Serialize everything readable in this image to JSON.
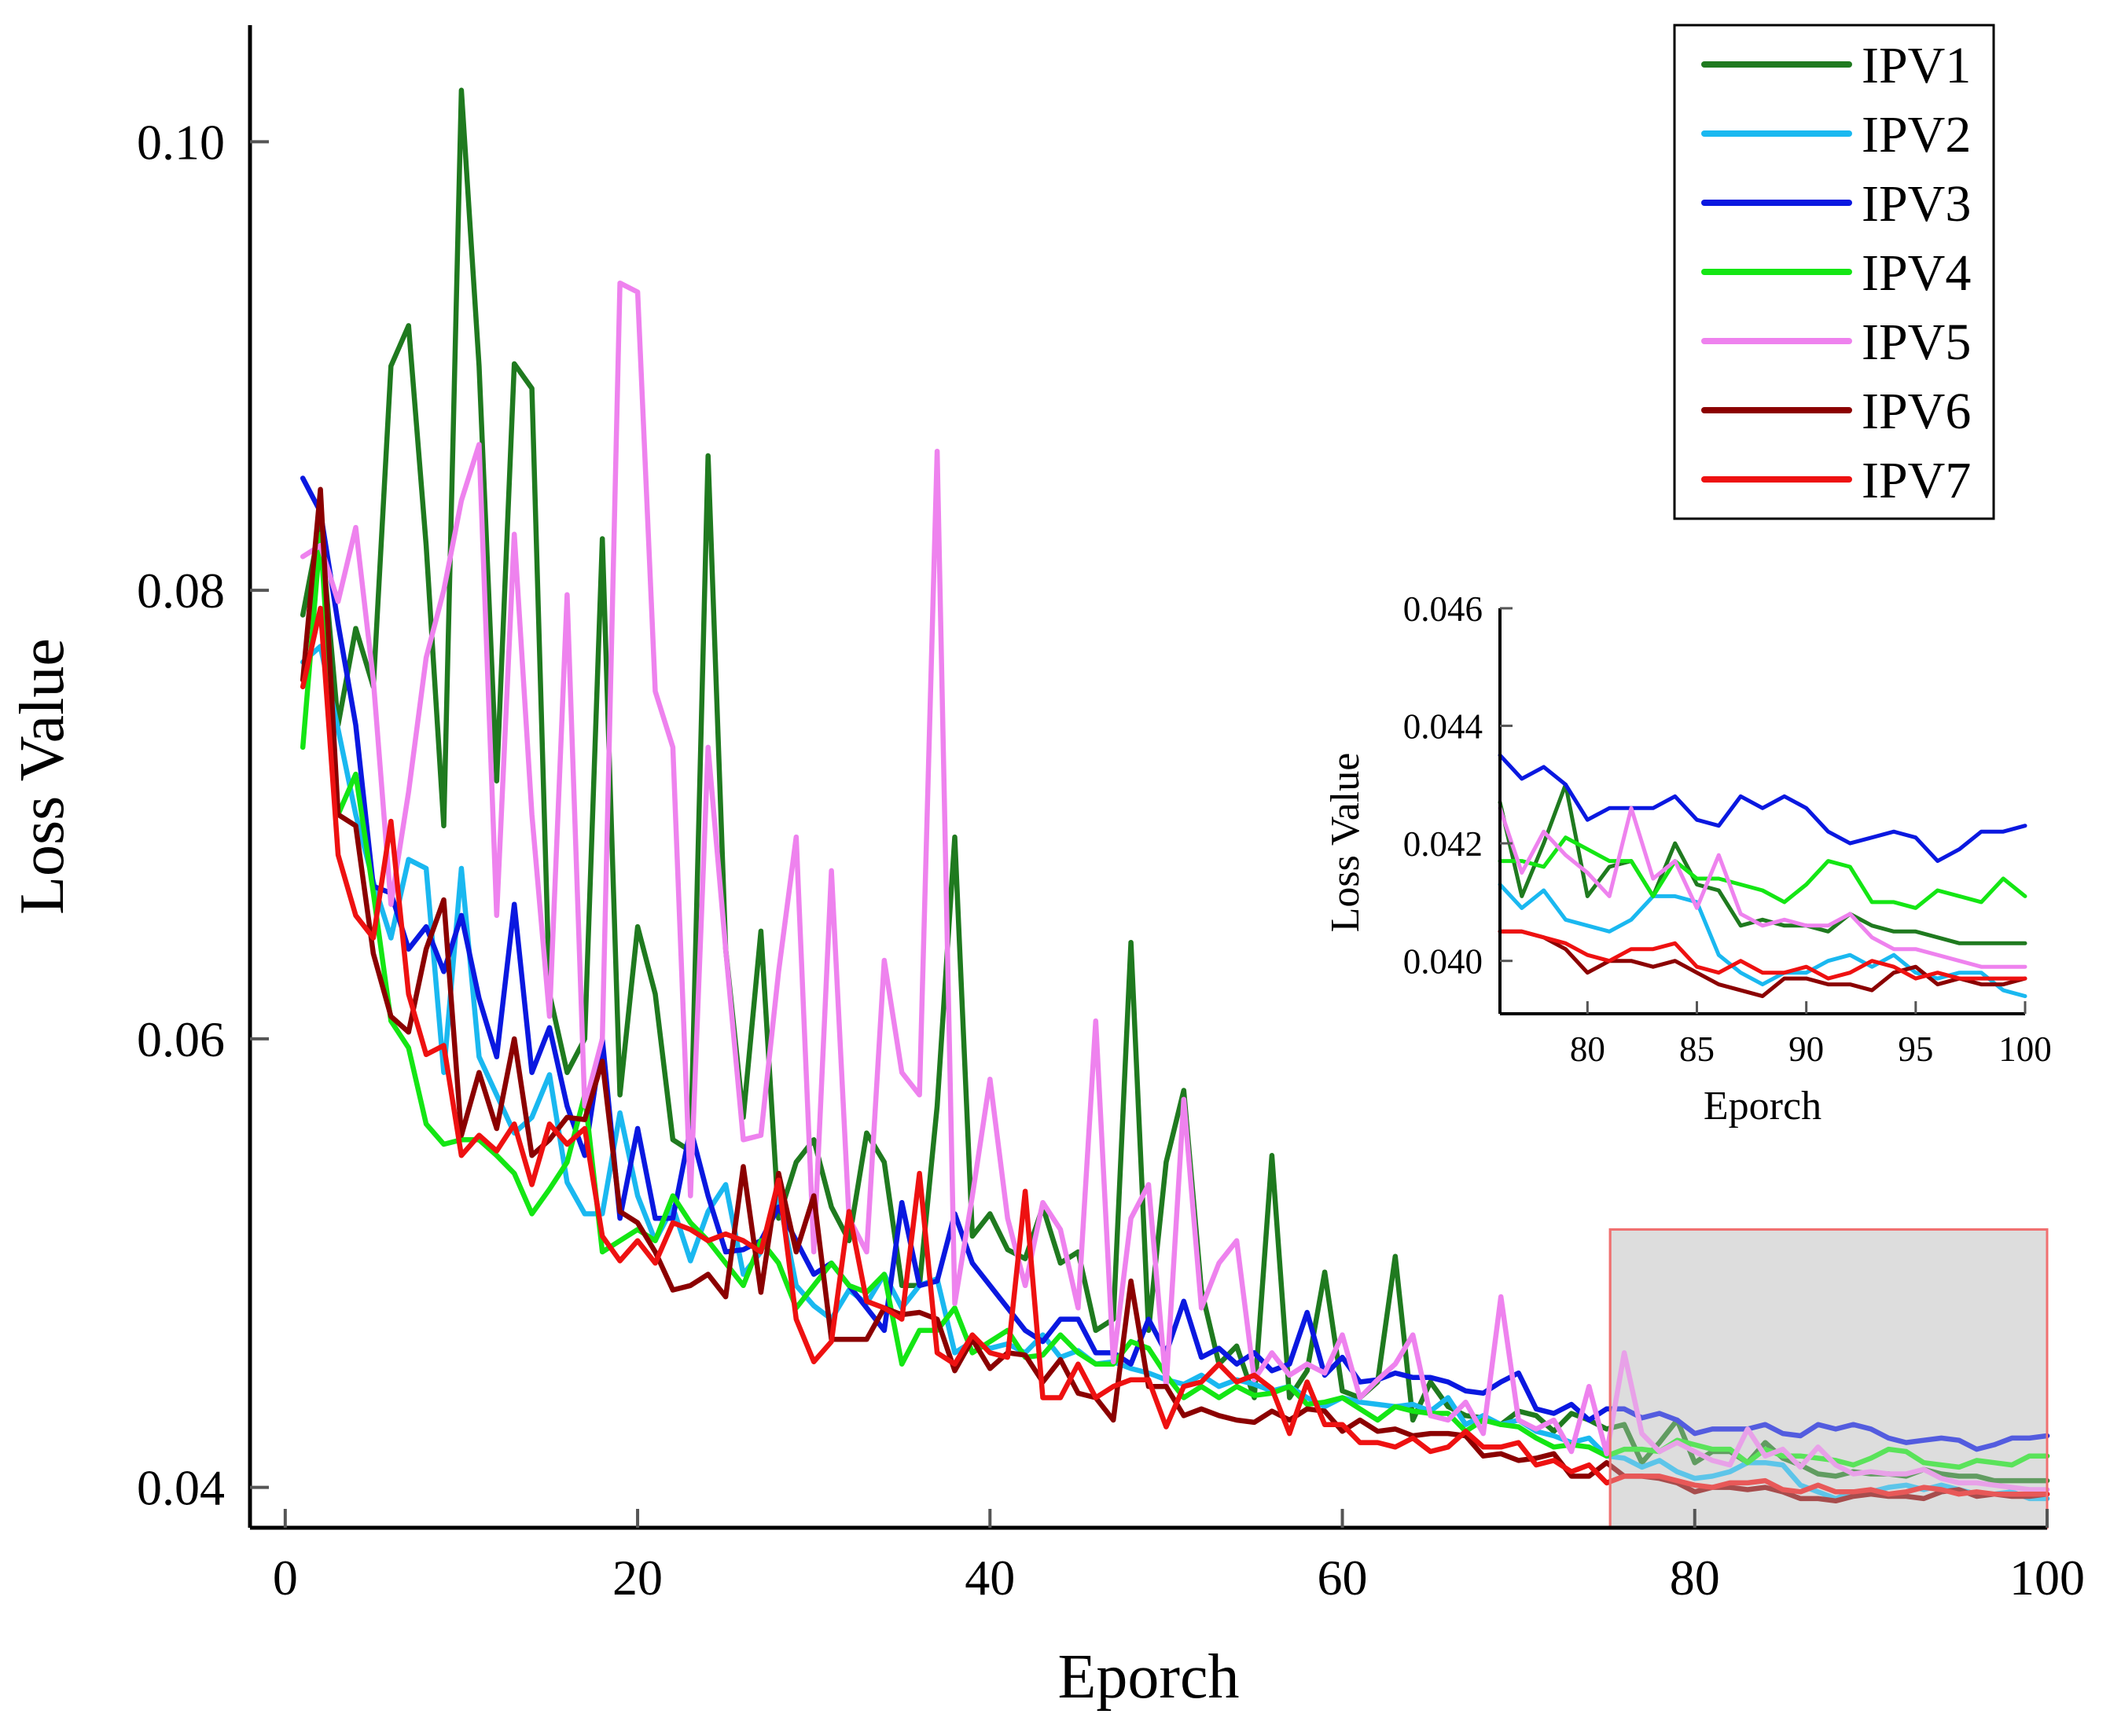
{
  "chart_data": {
    "type": "line",
    "title": "",
    "xlabel": "Eporch",
    "ylabel": "Loss Value",
    "xlim": [
      -2,
      100
    ],
    "ylim": [
      0.0382,
      0.1052
    ],
    "xticks": [
      0,
      20,
      40,
      60,
      80,
      100
    ],
    "yticks": [
      0.04,
      0.06,
      0.08,
      0.1
    ],
    "xtick_labels": [
      "0",
      "20",
      "40",
      "60",
      "80",
      "100"
    ],
    "ytick_labels": [
      "0.04",
      "0.06",
      "0.08",
      "0.10"
    ],
    "grid": false,
    "legend_position": "top-right",
    "zoom_region": {
      "x_range": [
        75.2,
        100
      ],
      "y_range": [
        0.0382,
        0.0515
      ],
      "fill": "#dedede",
      "stroke": "#f07070"
    },
    "x": [
      1,
      2,
      3,
      4,
      5,
      6,
      7,
      8,
      9,
      10,
      11,
      12,
      13,
      14,
      15,
      16,
      17,
      18,
      19,
      20,
      21,
      22,
      23,
      24,
      25,
      26,
      27,
      28,
      29,
      30,
      31,
      32,
      33,
      34,
      35,
      36,
      37,
      38,
      39,
      40,
      41,
      42,
      43,
      44,
      45,
      46,
      47,
      48,
      49,
      50,
      51,
      52,
      53,
      54,
      55,
      56,
      57,
      58,
      59,
      60,
      61,
      62,
      63,
      64,
      65,
      66,
      67,
      68,
      69,
      70,
      71,
      72,
      73,
      74,
      75,
      76,
      77,
      78,
      79,
      80,
      81,
      82,
      83,
      84,
      85,
      86,
      87,
      88,
      89,
      90,
      91,
      92,
      93,
      94,
      95,
      96,
      97,
      98,
      99,
      100
    ],
    "series": [
      {
        "name": "IPV1",
        "color": "#1f7a1f",
        "values": [
          0.0789,
          0.083,
          0.074,
          0.0783,
          0.0757,
          0.09,
          0.0918,
          0.082,
          0.0695,
          0.1023,
          0.09,
          0.0715,
          0.0901,
          0.089,
          0.062,
          0.0585,
          0.06,
          0.0823,
          0.0575,
          0.065,
          0.062,
          0.0555,
          0.055,
          0.086,
          0.064,
          0.0565,
          0.0648,
          0.052,
          0.0545,
          0.0555,
          0.0525,
          0.051,
          0.0558,
          0.0545,
          0.049,
          0.049,
          0.057,
          0.069,
          0.0512,
          0.0522,
          0.0506,
          0.0502,
          0.0525,
          0.05,
          0.0505,
          0.047,
          0.0475,
          0.0643,
          0.047,
          0.0545,
          0.0577,
          0.0488,
          0.0455,
          0.0463,
          0.044,
          0.0548,
          0.044,
          0.0452,
          0.0496,
          0.0443,
          0.044,
          0.0447,
          0.0503,
          0.043,
          0.0447,
          0.0436,
          0.0432,
          0.0431,
          0.0428,
          0.0434,
          0.0432,
          0.0425,
          0.0433,
          0.043,
          0.0426,
          0.0428,
          0.0411,
          0.042,
          0.043,
          0.0411,
          0.0416,
          0.0416,
          0.0411,
          0.042,
          0.0413,
          0.041,
          0.0406,
          0.0405,
          0.0407,
          0.0406,
          0.0406,
          0.0405,
          0.0408,
          0.0406,
          0.0405,
          0.0405,
          0.0403,
          0.0403,
          0.0403,
          0.0403
        ]
      },
      {
        "name": "IPV2",
        "color": "#1ab8f0",
        "values": [
          0.0768,
          0.0775,
          0.0738,
          0.07,
          0.067,
          0.0645,
          0.068,
          0.0676,
          0.0585,
          0.0676,
          0.0592,
          0.0575,
          0.0558,
          0.0565,
          0.0584,
          0.0536,
          0.0522,
          0.0522,
          0.0567,
          0.053,
          0.051,
          0.0525,
          0.0501,
          0.0523,
          0.0535,
          0.0495,
          0.0505,
          0.053,
          0.049,
          0.0481,
          0.0475,
          0.0488,
          0.0482,
          0.0495,
          0.048,
          0.049,
          0.0493,
          0.046,
          0.0465,
          0.0462,
          0.0464,
          0.046,
          0.0468,
          0.0458,
          0.0461,
          0.0455,
          0.0456,
          0.0453,
          0.0451,
          0.0448,
          0.0446,
          0.045,
          0.0445,
          0.0448,
          0.0446,
          0.0443,
          0.0445,
          0.044,
          0.0436,
          0.044,
          0.0438,
          0.0437,
          0.0436,
          0.0437,
          0.0434,
          0.044,
          0.0428,
          0.0432,
          0.0428,
          0.043,
          0.0425,
          0.0423,
          0.042,
          0.0422,
          0.0414,
          0.0413,
          0.0409,
          0.0412,
          0.0407,
          0.0404,
          0.0405,
          0.0407,
          0.0411,
          0.0411,
          0.041,
          0.0401,
          0.0398,
          0.0395,
          0.0398,
          0.0398,
          0.04,
          0.0401,
          0.0399,
          0.0401,
          0.0399,
          0.0397,
          0.0397,
          0.0398,
          0.0395,
          0.0395
        ]
      },
      {
        "name": "IPV3",
        "color": "#0a18e0",
        "values": [
          0.085,
          0.0835,
          0.0785,
          0.074,
          0.0668,
          0.0665,
          0.064,
          0.065,
          0.063,
          0.0655,
          0.0618,
          0.0592,
          0.066,
          0.0585,
          0.0605,
          0.057,
          0.0548,
          0.06,
          0.052,
          0.056,
          0.052,
          0.052,
          0.056,
          0.053,
          0.0505,
          0.0506,
          0.051,
          0.0525,
          0.051,
          0.0495,
          0.05,
          0.049,
          0.048,
          0.047,
          0.0527,
          0.049,
          0.0492,
          0.0522,
          0.05,
          0.049,
          0.048,
          0.047,
          0.0465,
          0.0475,
          0.0475,
          0.046,
          0.046,
          0.0455,
          0.0475,
          0.046,
          0.0483,
          0.0458,
          0.0462,
          0.0455,
          0.046,
          0.0452,
          0.0455,
          0.0478,
          0.045,
          0.0458,
          0.0447,
          0.0448,
          0.0451,
          0.0449,
          0.0449,
          0.0447,
          0.0443,
          0.0442,
          0.0447,
          0.0451,
          0.0435,
          0.0433,
          0.0437,
          0.043,
          0.0435,
          0.0435,
          0.0431,
          0.0433,
          0.043,
          0.0424,
          0.0426,
          0.0426,
          0.0426,
          0.0428,
          0.0424,
          0.0423,
          0.0428,
          0.0426,
          0.0428,
          0.0426,
          0.0422,
          0.042,
          0.0421,
          0.0422,
          0.0421,
          0.0417,
          0.0419,
          0.0422,
          0.0422,
          0.0423
        ]
      },
      {
        "name": "IPV4",
        "color": "#14e614",
        "values": [
          0.073,
          0.0825,
          0.07,
          0.0718,
          0.0665,
          0.0608,
          0.0596,
          0.0562,
          0.0553,
          0.0555,
          0.0555,
          0.0548,
          0.054,
          0.0522,
          0.0533,
          0.0545,
          0.0575,
          0.0505,
          0.051,
          0.0515,
          0.051,
          0.053,
          0.0518,
          0.051,
          0.05,
          0.049,
          0.051,
          0.05,
          0.048,
          0.049,
          0.05,
          0.049,
          0.0487,
          0.0495,
          0.0455,
          0.047,
          0.047,
          0.048,
          0.046,
          0.0465,
          0.047,
          0.0458,
          0.0459,
          0.0468,
          0.046,
          0.0455,
          0.0455,
          0.0465,
          0.0462,
          0.045,
          0.044,
          0.0445,
          0.044,
          0.0445,
          0.0441,
          0.0442,
          0.0445,
          0.0437,
          0.0438,
          0.044,
          0.0435,
          0.043,
          0.0436,
          0.0434,
          0.0433,
          0.0433,
          0.0425,
          0.043,
          0.0428,
          0.0427,
          0.0422,
          0.0418,
          0.0419,
          0.0418,
          0.0414,
          0.0417,
          0.0417,
          0.0416,
          0.0421,
          0.0419,
          0.0417,
          0.0417,
          0.0411,
          0.0417,
          0.0414,
          0.0414,
          0.0413,
          0.0412,
          0.041,
          0.0413,
          0.0417,
          0.0416,
          0.0411,
          0.041,
          0.0409,
          0.0412,
          0.0411,
          0.041,
          0.0414,
          0.0414
        ]
      },
      {
        "name": "IPV5",
        "color": "#ee82ee",
        "values": [
          0.0815,
          0.082,
          0.0795,
          0.0828,
          0.076,
          0.066,
          0.071,
          0.077,
          0.08,
          0.084,
          0.0865,
          0.0655,
          0.0825,
          0.07,
          0.061,
          0.0798,
          0.057,
          0.06,
          0.0937,
          0.0933,
          0.0755,
          0.073,
          0.053,
          0.073,
          0.064,
          0.0555,
          0.0557,
          0.063,
          0.069,
          0.0505,
          0.0675,
          0.052,
          0.0505,
          0.0635,
          0.0585,
          0.0575,
          0.0862,
          0.0482,
          0.053,
          0.0582,
          0.052,
          0.049,
          0.0527,
          0.0515,
          0.048,
          0.0608,
          0.0456,
          0.052,
          0.0535,
          0.0445,
          0.0573,
          0.048,
          0.05,
          0.051,
          0.0448,
          0.046,
          0.045,
          0.0455,
          0.0451,
          0.0468,
          0.044,
          0.0448,
          0.0455,
          0.0468,
          0.0432,
          0.043,
          0.0438,
          0.0424,
          0.0485,
          0.043,
          0.0426,
          0.043,
          0.0416,
          0.0445,
          0.0415,
          0.046,
          0.0424,
          0.0416,
          0.042,
          0.0416,
          0.0412,
          0.041,
          0.0426,
          0.0414,
          0.0417,
          0.0409,
          0.0418,
          0.041,
          0.0406,
          0.0407,
          0.0406,
          0.0406,
          0.0408,
          0.0404,
          0.0402,
          0.0402,
          0.0401,
          0.04,
          0.0399,
          0.0399
        ]
      },
      {
        "name": "IPV6",
        "color": "#8b0000",
        "values": [
          0.076,
          0.0845,
          0.07,
          0.0695,
          0.0638,
          0.061,
          0.0603,
          0.064,
          0.0662,
          0.0557,
          0.0585,
          0.056,
          0.06,
          0.0548,
          0.0555,
          0.0565,
          0.0564,
          0.059,
          0.0523,
          0.0518,
          0.0505,
          0.0488,
          0.049,
          0.0495,
          0.0485,
          0.0543,
          0.0487,
          0.054,
          0.0505,
          0.053,
          0.0466,
          0.0466,
          0.0466,
          0.048,
          0.0477,
          0.0478,
          0.0475,
          0.0452,
          0.0466,
          0.0453,
          0.046,
          0.0459,
          0.0447,
          0.0457,
          0.0442,
          0.044,
          0.043,
          0.0492,
          0.0445,
          0.0445,
          0.0432,
          0.0435,
          0.0432,
          0.043,
          0.0429,
          0.0434,
          0.043,
          0.0435,
          0.0434,
          0.0425,
          0.043,
          0.0425,
          0.0426,
          0.0423,
          0.0424,
          0.0424,
          0.0423,
          0.0414,
          0.0415,
          0.0412,
          0.0413,
          0.0415,
          0.0405,
          0.0405,
          0.0411,
          0.0405,
          0.0405,
          0.0404,
          0.0402,
          0.0398,
          0.04,
          0.04,
          0.0399,
          0.04,
          0.0398,
          0.0395,
          0.0395,
          0.0394,
          0.0396,
          0.0397,
          0.0396,
          0.0396,
          0.0395,
          0.0398,
          0.0399,
          0.0396,
          0.0397,
          0.0396,
          0.0396,
          0.0397
        ]
      },
      {
        "name": "IPV7",
        "color": "#ee1111",
        "values": [
          0.0757,
          0.0792,
          0.0682,
          0.0655,
          0.0645,
          0.0697,
          0.062,
          0.0593,
          0.0597,
          0.0548,
          0.0557,
          0.055,
          0.0562,
          0.0535,
          0.0562,
          0.0553,
          0.056,
          0.0512,
          0.0501,
          0.051,
          0.05,
          0.0518,
          0.0515,
          0.051,
          0.0513,
          0.051,
          0.0505,
          0.0537,
          0.0475,
          0.0456,
          0.0465,
          0.0523,
          0.0483,
          0.048,
          0.0475,
          0.054,
          0.046,
          0.0455,
          0.0468,
          0.046,
          0.0458,
          0.0532,
          0.044,
          0.044,
          0.0455,
          0.044,
          0.0445,
          0.0448,
          0.0448,
          0.0427,
          0.0445,
          0.0447,
          0.0455,
          0.0447,
          0.045,
          0.0444,
          0.0424,
          0.0447,
          0.0428,
          0.0428,
          0.042,
          0.042,
          0.0418,
          0.0422,
          0.0416,
          0.0418,
          0.0425,
          0.0418,
          0.0418,
          0.042,
          0.041,
          0.0412,
          0.0407,
          0.041,
          0.0402,
          0.0405,
          0.0405,
          0.0405,
          0.0403,
          0.0401,
          0.04,
          0.0402,
          0.0402,
          0.0403,
          0.0399,
          0.0398,
          0.0401,
          0.0398,
          0.0398,
          0.0399,
          0.0397,
          0.0398,
          0.04,
          0.0399,
          0.0397,
          0.0398,
          0.0397,
          0.0397,
          0.0397,
          0.0397
        ]
      }
    ],
    "inset": {
      "xlabel": "Eporch",
      "ylabel": "Loss Value",
      "xlim": [
        76,
        100
      ],
      "ylim": [
        0.0391,
        0.046
      ],
      "xticks": [
        80,
        85,
        90,
        95,
        100
      ],
      "yticks": [
        0.04,
        0.042,
        0.044,
        0.046
      ],
      "xtick_labels": [
        "80",
        "85",
        "90",
        "95",
        "100"
      ],
      "ytick_labels": [
        "0.040",
        "0.042",
        "0.044",
        "0.046"
      ],
      "series": [
        {
          "name": "IPV1",
          "values": [
            0.0427,
            0.0411,
            0.042,
            0.043,
            0.0411,
            0.0416,
            0.0417,
            0.0411,
            0.042,
            0.0413,
            0.0412,
            0.0406,
            0.0407,
            0.0406,
            0.0406,
            0.0405,
            0.0408,
            0.0406,
            0.0405,
            0.0405,
            0.0404,
            0.0403,
            0.0403,
            0.0403,
            0.0403
          ]
        },
        {
          "name": "IPV2",
          "values": [
            0.0413,
            0.0409,
            0.0412,
            0.0407,
            0.0406,
            0.0405,
            0.0407,
            0.0411,
            0.0411,
            0.041,
            0.0401,
            0.0398,
            0.0396,
            0.0398,
            0.0398,
            0.04,
            0.0401,
            0.0399,
            0.0401,
            0.0398,
            0.0397,
            0.0398,
            0.0398,
            0.0395,
            0.0394
          ]
        },
        {
          "name": "IPV3",
          "values": [
            0.0435,
            0.0431,
            0.0433,
            0.043,
            0.0424,
            0.0426,
            0.0426,
            0.0426,
            0.0428,
            0.0424,
            0.0423,
            0.0428,
            0.0426,
            0.0428,
            0.0426,
            0.0422,
            0.042,
            0.0421,
            0.0422,
            0.0421,
            0.0417,
            0.0419,
            0.0422,
            0.0422,
            0.0423
          ]
        },
        {
          "name": "IPV4",
          "values": [
            0.0417,
            0.0417,
            0.0416,
            0.0421,
            0.0419,
            0.0417,
            0.0417,
            0.0411,
            0.0417,
            0.0414,
            0.0414,
            0.0413,
            0.0412,
            0.041,
            0.0413,
            0.0417,
            0.0416,
            0.041,
            0.041,
            0.0409,
            0.0412,
            0.0411,
            0.041,
            0.0414,
            0.0411
          ]
        },
        {
          "name": "IPV5",
          "values": [
            0.0426,
            0.0415,
            0.0422,
            0.0418,
            0.0415,
            0.0411,
            0.0426,
            0.0414,
            0.0417,
            0.0409,
            0.0418,
            0.0408,
            0.0406,
            0.0407,
            0.0406,
            0.0406,
            0.0408,
            0.0404,
            0.0402,
            0.0402,
            0.0401,
            0.04,
            0.0399,
            0.0399,
            0.0399
          ]
        },
        {
          "name": "IPV6",
          "values": [
            0.0405,
            0.0405,
            0.0404,
            0.0402,
            0.0398,
            0.04,
            0.04,
            0.0399,
            0.04,
            0.0398,
            0.0396,
            0.0395,
            0.0394,
            0.0397,
            0.0397,
            0.0396,
            0.0396,
            0.0395,
            0.0398,
            0.0399,
            0.0396,
            0.0397,
            0.0396,
            0.0396,
            0.0397
          ]
        },
        {
          "name": "IPV7",
          "values": [
            0.0405,
            0.0405,
            0.0404,
            0.0403,
            0.0401,
            0.04,
            0.0402,
            0.0402,
            0.0403,
            0.0399,
            0.0398,
            0.04,
            0.0398,
            0.0398,
            0.0399,
            0.0397,
            0.0398,
            0.04,
            0.0399,
            0.0397,
            0.0398,
            0.0397,
            0.0397,
            0.0397,
            0.0397
          ]
        }
      ]
    }
  }
}
